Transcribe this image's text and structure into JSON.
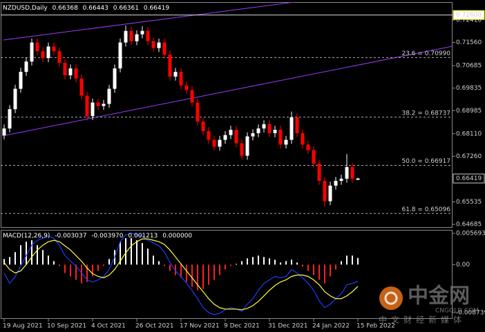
{
  "chart_data": [
    {
      "type": "candlestick",
      "symbol": "NZDUSD,Daily",
      "categories": [
        "19 Aug 2021",
        null,
        null,
        null,
        null,
        null,
        null,
        null,
        "10 Sep 2021",
        null,
        null,
        null,
        null,
        null,
        null,
        null,
        "4 Oct 2021",
        null,
        null,
        null,
        null,
        null,
        null,
        null,
        "26 Oct 2021",
        null,
        null,
        null,
        null,
        null,
        null,
        null,
        "17 Nov 2021",
        null,
        null,
        null,
        null,
        null,
        null,
        null,
        "9 Dec 2021",
        null,
        null,
        null,
        null,
        null,
        null,
        null,
        "31 Dec 2021",
        null,
        null,
        null,
        null,
        null,
        null,
        null,
        "24 Jan 2022",
        null,
        null,
        null,
        null,
        null,
        null,
        null,
        "15 Feb 2022"
      ],
      "open": [
        0.6805,
        0.6831,
        0.6904,
        0.6981,
        0.7045,
        0.7084,
        0.7156,
        0.7123,
        0.7097,
        0.7141,
        0.7123,
        0.7079,
        0.7032,
        0.7058,
        0.702,
        0.6955,
        0.6878,
        0.6929,
        0.6916,
        0.6924,
        0.6981,
        0.7058,
        0.7156,
        0.72,
        0.7161,
        0.7187,
        0.72,
        0.7161,
        0.7135,
        0.7156,
        0.711,
        0.7027,
        0.7045,
        0.6994,
        0.6976,
        0.6929,
        0.6857,
        0.6821,
        0.6788,
        0.6762,
        0.6788,
        0.6806,
        0.6826,
        0.6775,
        0.6728,
        0.6801,
        0.6813,
        0.6831,
        0.6847,
        0.6813,
        0.6826,
        0.677,
        0.6788,
        0.6873,
        0.6813,
        0.677,
        0.6749,
        0.6698,
        0.6633,
        0.6556,
        0.6615,
        0.6633,
        0.6641,
        0.6685,
        0.66368
      ],
      "high": [
        0.6846,
        0.6919,
        0.6996,
        0.706,
        0.7099,
        0.7171,
        0.7171,
        0.7138,
        0.7156,
        0.7156,
        0.7138,
        0.7094,
        0.7073,
        0.7073,
        0.7035,
        0.697,
        0.6944,
        0.6944,
        0.6939,
        0.6996,
        0.7073,
        0.7171,
        0.722,
        0.7215,
        0.7202,
        0.7218,
        0.7215,
        0.7176,
        0.7171,
        0.7171,
        0.7125,
        0.706,
        0.706,
        0.7009,
        0.6991,
        0.6944,
        0.6872,
        0.6836,
        0.6803,
        0.6803,
        0.6821,
        0.6841,
        0.6841,
        0.679,
        0.6816,
        0.6828,
        0.6846,
        0.6862,
        0.6862,
        0.6841,
        0.6841,
        0.6803,
        0.6895,
        0.6888,
        0.6828,
        0.6785,
        0.6764,
        0.6713,
        0.6648,
        0.663,
        0.6648,
        0.6656,
        0.6734,
        0.67,
        0.66443
      ],
      "low": [
        0.679,
        0.6816,
        0.6889,
        0.6966,
        0.703,
        0.7069,
        0.7108,
        0.7082,
        0.7082,
        0.7108,
        0.7064,
        0.7017,
        0.7017,
        0.7005,
        0.694,
        0.6863,
        0.6863,
        0.6901,
        0.6901,
        0.6909,
        0.6966,
        0.7043,
        0.7141,
        0.7146,
        0.7146,
        0.7172,
        0.7146,
        0.712,
        0.712,
        0.7095,
        0.7012,
        0.7012,
        0.6979,
        0.6961,
        0.6914,
        0.6842,
        0.6806,
        0.6773,
        0.6747,
        0.6747,
        0.6773,
        0.6791,
        0.676,
        0.6713,
        0.6713,
        0.6786,
        0.6798,
        0.6816,
        0.6798,
        0.6798,
        0.6755,
        0.6755,
        0.6773,
        0.6798,
        0.6755,
        0.6734,
        0.6683,
        0.6618,
        0.6535,
        0.6541,
        0.66,
        0.6618,
        0.6626,
        0.6626,
        0.66361
      ],
      "close": [
        0.6831,
        0.6904,
        0.6981,
        0.7045,
        0.7084,
        0.7156,
        0.7123,
        0.7097,
        0.7141,
        0.7123,
        0.7079,
        0.7032,
        0.7058,
        0.702,
        0.6955,
        0.6878,
        0.6929,
        0.6916,
        0.6924,
        0.6981,
        0.7058,
        0.7156,
        0.72,
        0.7161,
        0.7187,
        0.72,
        0.7161,
        0.7135,
        0.7156,
        0.711,
        0.7027,
        0.7045,
        0.6994,
        0.6976,
        0.6929,
        0.6857,
        0.6821,
        0.6788,
        0.6762,
        0.6788,
        0.6806,
        0.6826,
        0.6775,
        0.6728,
        0.6801,
        0.6813,
        0.6831,
        0.6847,
        0.6813,
        0.6826,
        0.677,
        0.6788,
        0.6873,
        0.6813,
        0.677,
        0.6749,
        0.6698,
        0.6633,
        0.6556,
        0.6615,
        0.6633,
        0.6641,
        0.6685,
        0.6641,
        0.66419
      ],
      "up_color": "#ffffff",
      "down_color": "#ff0000",
      "ylim": [
        0.64555,
        0.73089
      ],
      "yticks": [
        {
          "value": 0.7241,
          "label": "0.72410"
        },
        {
          "value": 0.7156,
          "label": "0.71560"
        },
        {
          "value": 0.70685,
          "label": "0.70685"
        },
        {
          "value": 0.69835,
          "label": "0.69835"
        },
        {
          "value": 0.68985,
          "label": "0.68985"
        },
        {
          "value": 0.6811,
          "label": "0.68110"
        },
        {
          "value": 0.6726,
          "label": "0.67260"
        },
        {
          "value": 0.65535,
          "label": "0.65535"
        },
        {
          "value": 0.64685,
          "label": "0.64685"
        }
      ],
      "levels": [
        {
          "label": "23.6 = 0.70990",
          "value": 0.7099
        },
        {
          "label": "38.2 = 0.68737",
          "value": 0.68737
        },
        {
          "label": "50.0 = 0.66917",
          "value": 0.66917
        },
        {
          "label": "61.8 = 0.65096",
          "value": 0.65096
        }
      ],
      "marked_price": {
        "value": 0.726,
        "label": "0.72600"
      }
    },
    {
      "type": "macd",
      "title": "MACD(12,26,9)",
      "readout": [
        "-0.003037",
        "-0.003970",
        "0.001213",
        "0.000000"
      ],
      "histogram": {
        "up_color": "#ffffff",
        "down_color": "#ff2020",
        "values": [
          0.00101,
          0.00139,
          0.00228,
          0.00354,
          0.00417,
          0.00443,
          0.00354,
          0.00266,
          0.00164,
          0.00063,
          -0.00025,
          -0.00152,
          -0.00215,
          -0.00278,
          -0.00342,
          -0.00316,
          -0.00215,
          -0.00114,
          -0.00025,
          0.00101,
          0.00266,
          0.00417,
          0.00481,
          0.00481,
          0.00443,
          0.00392,
          0.00291,
          0.00164,
          0.00063,
          -0.00025,
          -0.00114,
          -0.0019,
          -0.0024,
          -0.00316,
          -0.00405,
          -0.00468,
          -0.00443,
          -0.00367,
          -0.00278,
          -0.0019,
          -0.00089,
          -0.00025,
          0.00013,
          0.00063,
          0.00114,
          0.00139,
          0.00164,
          0.00139,
          0.00114,
          0.00089,
          0.00038,
          0.00063,
          0.00089,
          0.00038,
          -0.00038,
          -0.00114,
          -0.0019,
          -0.00278,
          -0.00342,
          -0.00215,
          -0.00089,
          0.00063,
          0.00164,
          0.00164,
          0.001213
        ]
      },
      "main": {
        "color": "#1e3cff",
        "values": [
          -0.00152,
          -0.00342,
          -0.00215,
          -0.00025,
          0.00164,
          0.00354,
          0.00443,
          0.00481,
          0.00519,
          0.00481,
          0.00354,
          0.00164,
          0.00063,
          -0.00025,
          -0.00152,
          -0.00278,
          -0.00316,
          -0.00278,
          -0.00215,
          -0.00089,
          0.00139,
          0.00417,
          0.00544,
          0.00569,
          0.00544,
          0.00519,
          0.00443,
          0.00392,
          0.00342,
          0.00228,
          0.00038,
          -0.00114,
          -0.00215,
          -0.00342,
          -0.00468,
          -0.0062,
          -0.00784,
          -0.00873,
          -0.00911,
          -0.00886,
          -0.00822,
          -0.00784,
          -0.0081,
          -0.00848,
          -0.00721,
          -0.0062,
          -0.00468,
          -0.00342,
          -0.00278,
          -0.00215,
          -0.0024,
          -0.00215,
          -0.00089,
          -0.00152,
          -0.0024,
          -0.00342,
          -0.00468,
          -0.00658,
          -0.00784,
          -0.00721,
          -0.0062,
          -0.00531,
          -0.00367,
          -0.00342,
          -0.003037
        ]
      },
      "signal": {
        "color": "#ffff40",
        "values": [
          0.00038,
          -0.00089,
          -0.00152,
          -0.00114,
          0,
          0.00139,
          0.00266,
          0.00354,
          0.00417,
          0.00443,
          0.00417,
          0.00342,
          0.00266,
          0.00164,
          0.00063,
          -0.00063,
          -0.00164,
          -0.00215,
          -0.0024,
          -0.0019,
          -0.00089,
          0.00063,
          0.00215,
          0.00342,
          0.00417,
          0.00468,
          0.00468,
          0.00443,
          0.00417,
          0.00367,
          0.00266,
          0.00139,
          0.00013,
          -0.00114,
          -0.0024,
          -0.00367,
          -0.00493,
          -0.0062,
          -0.00721,
          -0.00784,
          -0.0081,
          -0.0081,
          -0.0081,
          -0.00822,
          -0.00797,
          -0.00746,
          -0.0067,
          -0.00569,
          -0.00468,
          -0.0038,
          -0.00316,
          -0.00278,
          -0.00215,
          -0.0019,
          -0.0019,
          -0.00215,
          -0.00278,
          -0.00367,
          -0.00493,
          -0.00569,
          -0.0062,
          -0.0062,
          -0.00569,
          -0.00493,
          -0.00397
        ]
      },
      "ylim": [
        -0.00988,
        0.00633
      ],
      "yticks": [
        0.005693,
        {
          "value": 0,
          "label": "0.00"
        },
        -0.008739
      ]
    }
  ],
  "watermark": {
    "brand": "中金网",
    "domain": "CNGOLD.COM",
    "slogan": "中文财经新媒体"
  }
}
